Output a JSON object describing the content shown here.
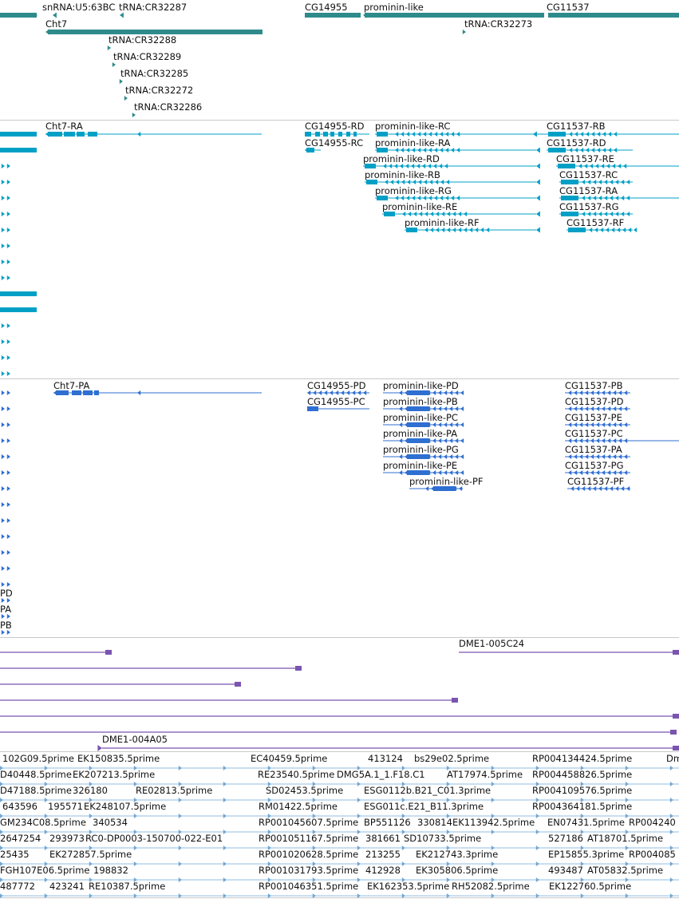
{
  "colors": {
    "gene": "#2e8b8b",
    "transcript": "#00a0c6",
    "protein": "#2f6fd1",
    "clone": "#7a55b0",
    "est": "#6fa8d6",
    "separator": "#c8c8c8"
  },
  "gene_track": {
    "labels": [
      "snRNA:U5:63BC",
      "tRNA:CR32287",
      "Cht7",
      "tRNA:CR32288",
      "tRNA:CR32289",
      "tRNA:CR32285",
      "tRNA:CR32272",
      "tRNA:CR32286",
      "CG14955",
      "prominin-like",
      "tRNA:CR32273",
      "CG11537"
    ]
  },
  "transcript_track": {
    "labels": [
      "Cht7-RA",
      "CG14955-RD",
      "CG14955-RC",
      "prominin-like-RC",
      "prominin-like-RA",
      "prominin-like-RD",
      "prominin-like-RB",
      "prominin-like-RG",
      "prominin-like-RE",
      "prominin-like-RF",
      "CG11537-RB",
      "CG11537-RD",
      "CG11537-RE",
      "CG11537-RC",
      "CG11537-RA",
      "CG11537-RG",
      "CG11537-RF"
    ]
  },
  "protein_track": {
    "labels": [
      "Cht7-PA",
      "CG14955-PD",
      "CG14955-PC",
      "prominin-like-PD",
      "prominin-like-PB",
      "prominin-like-PC",
      "prominin-like-PA",
      "prominin-like-PG",
      "prominin-like-PE",
      "prominin-like-PF",
      "CG11537-PB",
      "CG11537-PD",
      "CG11537-PE",
      "CG11537-PC",
      "CG11537-PA",
      "CG11537-PG",
      "CG11537-PF",
      "PD",
      "PA",
      "PB"
    ]
  },
  "clone_track": {
    "labels": [
      "DME1-005C24",
      "DME1-004A05"
    ]
  },
  "est_track": {
    "labels": [
      "102G09.5prime",
      "EK150835.5prime",
      "EC40459.5prime",
      "413124",
      "bs29e02.5prime",
      "RP004134424.5prime",
      "Dm",
      "D40448.5prime",
      "EK207213.5prime",
      "RE23540.5prime",
      "DMG5A.1_1.F18.C1",
      "AT17974.5prime",
      "RP004458826.5prime",
      "D47188.5prime",
      "326180",
      "RE02813.5prime",
      "SD02453.5prime",
      "ESG0112b.B21_C01.3prime",
      "RP004109576.5prime",
      "643596",
      "195571",
      "EK248107.5prime",
      "RM01422.5prime",
      "ESG011c.E21_B11.3prime",
      "RP004364181.5prime",
      "GM234C08.5prime",
      "340534",
      "RP001045607.5prime",
      "BP551126",
      "330814",
      "EK113942.5prime",
      "EN07431.5prime",
      "RP004240",
      "2647254",
      "293973",
      "RC0-DP0003-150700-022-E01",
      "RP001051167.5prime",
      "381661",
      "SD10733.5prime",
      "527186",
      "AT18701.5prime",
      "25435",
      "EK272857.5prime",
      "RP001020628.5prime",
      "213255",
      "EK212743.3prime",
      "EP15855.3prime",
      "RP004085",
      "FGH107E06.5prime",
      "198832",
      "RP001031793.5prime",
      "412928",
      "EK305806.5prime",
      "493487",
      "AT05832.5prime",
      "487772",
      "423241",
      "RE10387.5prime",
      "RP001046351.5prime",
      "EK162353.5prime",
      "RH52082.5prime",
      "EK122760.5prime"
    ]
  }
}
